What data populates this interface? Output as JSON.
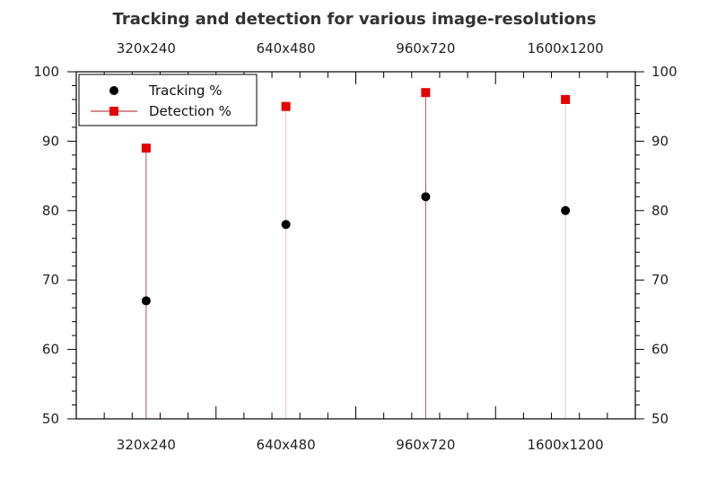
{
  "chart_data": {
    "type": "scatter",
    "title": "Tracking and detection for various image-resolutions",
    "xlabel": "",
    "ylabel": "",
    "categories": [
      "320x240",
      "640x480",
      "960x720",
      "1600x1200"
    ],
    "ylim": [
      50,
      100
    ],
    "yticks": [
      "50",
      "60",
      "70",
      "80",
      "90",
      "100"
    ],
    "grid": false,
    "legend_position": "top-left",
    "series": [
      {
        "name": "Tracking %",
        "values": [
          67,
          78,
          82,
          80
        ],
        "color": "#000000",
        "marker": "circle"
      },
      {
        "name": "Detection %",
        "values": [
          89,
          95,
          97,
          96
        ],
        "color": "#e60000",
        "marker": "square",
        "stem": true
      }
    ]
  }
}
